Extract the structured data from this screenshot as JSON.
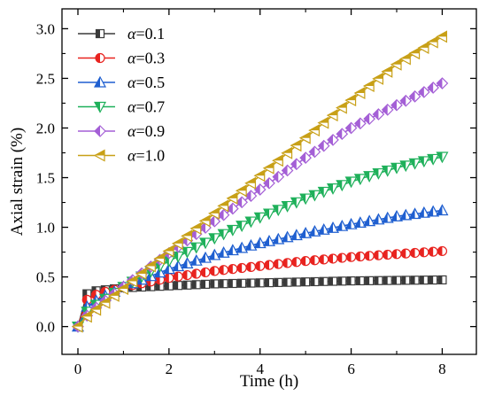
{
  "chart_data": {
    "type": "line",
    "xlabel": "Time (h)",
    "ylabel": "Axial strain (%)",
    "xlim": [
      -0.35,
      8.75
    ],
    "ylim": [
      -0.28,
      3.2
    ],
    "xticks": [
      "0",
      "2",
      "4",
      "6",
      "8"
    ],
    "yticks": [
      "0.0",
      "0.5",
      "1.0",
      "1.5",
      "2.0",
      "2.5",
      "3.0"
    ],
    "legend_position": "top-left",
    "grid": false,
    "series": [
      {
        "name": "α=0.1",
        "legend_prefix": "α",
        "legend_suffix": "=0.1",
        "color": "#3a3a3a",
        "marker": "square",
        "x": [
          0,
          0.2,
          0.4,
          0.6,
          0.8,
          1.0,
          2.0,
          3.0,
          4.0,
          5.0,
          6.0,
          7.0,
          8.0
        ],
        "y": [
          0.0,
          0.33,
          0.36,
          0.37,
          0.38,
          0.39,
          0.41,
          0.43,
          0.44,
          0.45,
          0.46,
          0.465,
          0.47
        ]
      },
      {
        "name": "α=0.3",
        "legend_prefix": "α",
        "legend_suffix": "=0.3",
        "color": "#e8231f",
        "marker": "circle",
        "x": [
          0,
          0.2,
          0.4,
          0.6,
          0.8,
          1.0,
          2.0,
          3.0,
          4.0,
          5.0,
          6.0,
          7.0,
          8.0
        ],
        "y": [
          0.0,
          0.27,
          0.32,
          0.35,
          0.37,
          0.4,
          0.49,
          0.56,
          0.61,
          0.66,
          0.7,
          0.73,
          0.76
        ]
      },
      {
        "name": "α=0.5",
        "legend_prefix": "α",
        "legend_suffix": "=0.5",
        "color": "#1f5fd0",
        "marker": "triangle-up",
        "x": [
          0,
          0.2,
          0.4,
          0.6,
          0.8,
          1.0,
          2.0,
          3.0,
          4.0,
          5.0,
          6.0,
          7.0,
          8.0
        ],
        "y": [
          0.0,
          0.2,
          0.26,
          0.31,
          0.35,
          0.4,
          0.58,
          0.72,
          0.84,
          0.94,
          1.03,
          1.11,
          1.17
        ]
      },
      {
        "name": "α=0.7",
        "legend_prefix": "α",
        "legend_suffix": "=0.7",
        "color": "#1eb05a",
        "marker": "triangle-down",
        "x": [
          0,
          0.2,
          0.4,
          0.6,
          0.8,
          1.0,
          2.0,
          3.0,
          4.0,
          5.0,
          6.0,
          7.0,
          8.0
        ],
        "y": [
          0.0,
          0.15,
          0.22,
          0.28,
          0.34,
          0.4,
          0.66,
          0.89,
          1.1,
          1.29,
          1.46,
          1.6,
          1.71
        ]
      },
      {
        "name": "α=0.9",
        "legend_prefix": "α",
        "legend_suffix": "=0.9",
        "color": "#a45fd6",
        "marker": "diamond",
        "x": [
          0,
          0.2,
          0.4,
          0.6,
          0.8,
          1.0,
          2.0,
          3.0,
          4.0,
          5.0,
          6.0,
          7.0,
          8.0
        ],
        "y": [
          0.0,
          0.11,
          0.19,
          0.26,
          0.33,
          0.4,
          0.74,
          1.06,
          1.38,
          1.7,
          2.0,
          2.23,
          2.45
        ]
      },
      {
        "name": "α=1.0",
        "legend_prefix": "α",
        "legend_suffix": "=1.0",
        "color": "#c8a017",
        "marker": "triangle-left",
        "x": [
          0,
          0.2,
          0.4,
          0.6,
          0.8,
          1.0,
          2.0,
          3.0,
          4.0,
          5.0,
          6.0,
          7.0,
          8.0
        ],
        "y": [
          0.0,
          0.1,
          0.17,
          0.24,
          0.31,
          0.38,
          0.76,
          1.14,
          1.52,
          1.9,
          2.28,
          2.64,
          2.92
        ]
      }
    ]
  }
}
